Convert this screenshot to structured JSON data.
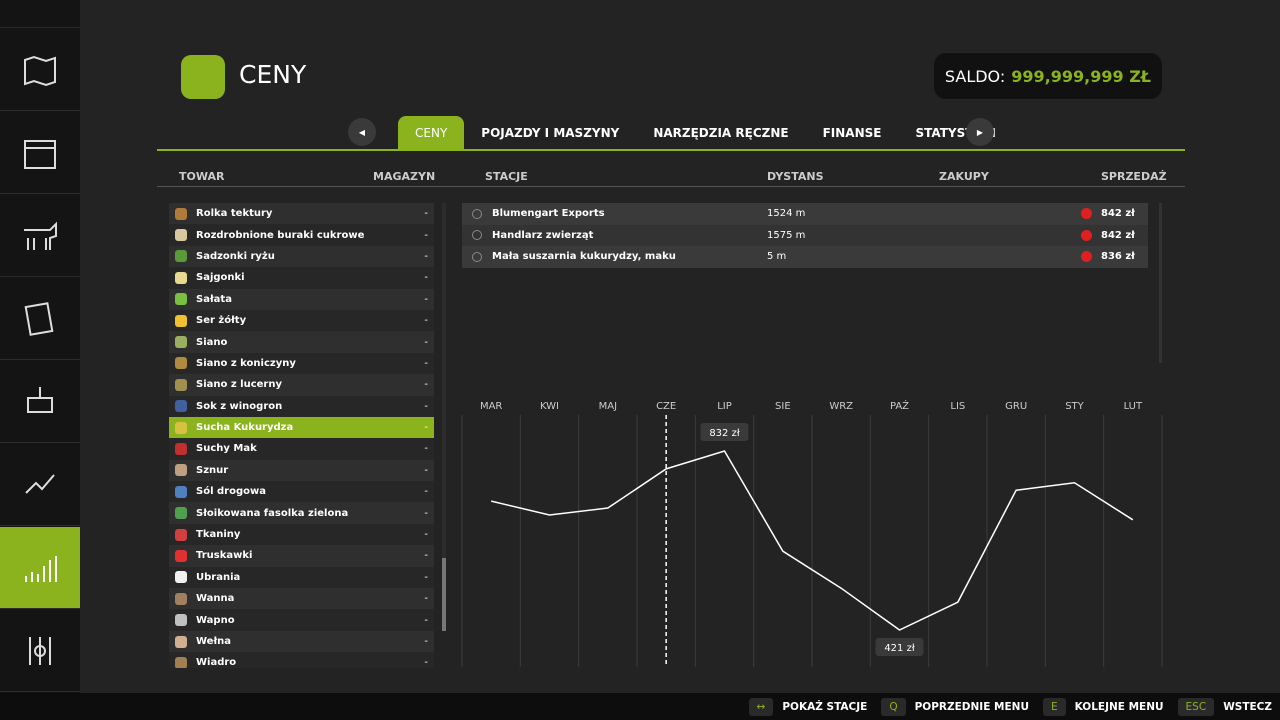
{
  "header": {
    "title": "CENY",
    "balance_label": "SALDO:",
    "balance": "999,999,999 ZŁ"
  },
  "tabs": [
    "CENY",
    "POJAZDY I MASZYNY",
    "NARZĘDZIA RĘCZNE",
    "FINANSE",
    "STATYSTYKI"
  ],
  "active_tab": "CENY",
  "columns": [
    "TOWAR",
    "MAGAZYN",
    "STACJE",
    "DYSTANS",
    "ZAKUPY",
    "SPRZEDAŻ"
  ],
  "goods": [
    {
      "name": "Rolka tektury",
      "storage": "-"
    },
    {
      "name": "Rozdrobnione buraki cukrowe",
      "storage": "-"
    },
    {
      "name": "Sadzonki ryżu",
      "storage": "-"
    },
    {
      "name": "Sajgonki",
      "storage": "-"
    },
    {
      "name": "Sałata",
      "storage": "-"
    },
    {
      "name": "Ser żółty",
      "storage": "-"
    },
    {
      "name": "Siano",
      "storage": "-"
    },
    {
      "name": "Siano z koniczyny",
      "storage": "-"
    },
    {
      "name": "Siano z lucerny",
      "storage": "-"
    },
    {
      "name": "Sok z winogron",
      "storage": "-"
    },
    {
      "name": "Sucha Kukurydza",
      "storage": "-"
    },
    {
      "name": "Suchy Mak",
      "storage": "-"
    },
    {
      "name": "Sznur",
      "storage": "-"
    },
    {
      "name": "Sól drogowa",
      "storage": "-"
    },
    {
      "name": "Słoikowana fasolka zielona",
      "storage": "-"
    },
    {
      "name": "Tkaniny",
      "storage": "-"
    },
    {
      "name": "Truskawki",
      "storage": "-"
    },
    {
      "name": "Ubrania",
      "storage": "-"
    },
    {
      "name": "Wanna",
      "storage": "-"
    },
    {
      "name": "Wapno",
      "storage": "-"
    },
    {
      "name": "Wełna",
      "storage": "-"
    },
    {
      "name": "Wiadro",
      "storage": "-"
    }
  ],
  "selected_good": "Sucha Kukurydza",
  "stations": [
    {
      "name": "Blumengart Exports",
      "distance": "1524 m",
      "price": "842 zł"
    },
    {
      "name": "Handlarz zwierząt",
      "distance": "1575 m",
      "price": "842 zł"
    },
    {
      "name": "Mała suszarnia kukurydzy, maku",
      "distance": "5 m",
      "price": "836 zł"
    }
  ],
  "chart_data": {
    "type": "line",
    "categories": [
      "MAR",
      "KWI",
      "MAJ",
      "CZE",
      "LIP",
      "SIE",
      "WRZ",
      "PAŹ",
      "LIS",
      "GRU",
      "STY",
      "LUT"
    ],
    "values": [
      717,
      685,
      701,
      791,
      832,
      602,
      517,
      421,
      485,
      742,
      759,
      674
    ],
    "value_labels": [
      null,
      null,
      null,
      null,
      "832 zł",
      null,
      null,
      "421 zł",
      null,
      null,
      null,
      null
    ],
    "current_category": "CZE",
    "color": "#ffffff"
  },
  "footer": [
    {
      "key": "↔",
      "label": "POKAŻ STACJE"
    },
    {
      "key": "Q",
      "label": "POPRZEDNIE MENU"
    },
    {
      "key": "E",
      "label": "KOLEJNE MENU"
    },
    {
      "key": "ESC",
      "label": "WSTECZ"
    }
  ]
}
